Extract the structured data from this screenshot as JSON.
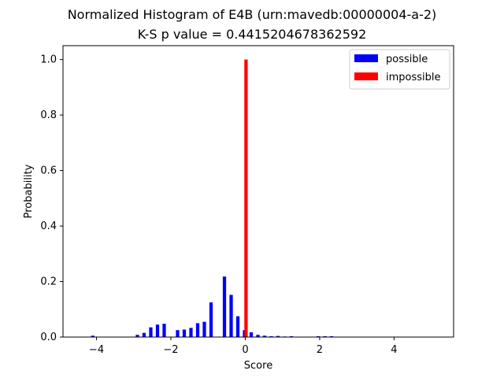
{
  "chart_data": {
    "type": "bar",
    "title": "Normalized Histogram of E4B (urn:mavedb:00000004-a-2)",
    "subtitle": "K-S p value = 0.4415204678362592",
    "xlabel": "Score",
    "ylabel": "Probability",
    "xlim": [
      -4.9,
      5.6
    ],
    "ylim": [
      0,
      1.05
    ],
    "xticks": [
      -4,
      -2,
      0,
      2,
      4
    ],
    "yticks": [
      0.0,
      0.2,
      0.4,
      0.6,
      0.8,
      1.0
    ],
    "xtick_labels": [
      "−4",
      "−2",
      "0",
      "2",
      "4"
    ],
    "ytick_labels": [
      "0.0",
      "0.2",
      "0.4",
      "0.6",
      "0.8",
      "1.0"
    ],
    "bar_width": 0.09,
    "grid": false,
    "legend_position": "top-right",
    "series": [
      {
        "name": "possible",
        "color": "#0000ff",
        "x": [
          -4.1,
          -2.9,
          -2.72,
          -2.54,
          -2.36,
          -2.18,
          -1.82,
          -1.64,
          -1.46,
          -1.28,
          -1.1,
          -0.92,
          -0.56,
          -0.38,
          -0.2,
          -0.02,
          0.16,
          0.34,
          0.52,
          0.7,
          0.88,
          1.06,
          1.24,
          1.96,
          2.14,
          2.32
        ],
        "values": [
          0.005,
          0.008,
          0.015,
          0.035,
          0.045,
          0.048,
          0.025,
          0.027,
          0.033,
          0.05,
          0.055,
          0.125,
          0.218,
          0.152,
          0.075,
          0.025,
          0.017,
          0.008,
          0.005,
          0.003,
          0.004,
          0.002,
          0.003,
          0.003,
          0.003,
          0.003
        ]
      },
      {
        "name": "impossible",
        "color": "#ff0000",
        "x": [
          0.02
        ],
        "values": [
          1.0
        ]
      }
    ]
  }
}
